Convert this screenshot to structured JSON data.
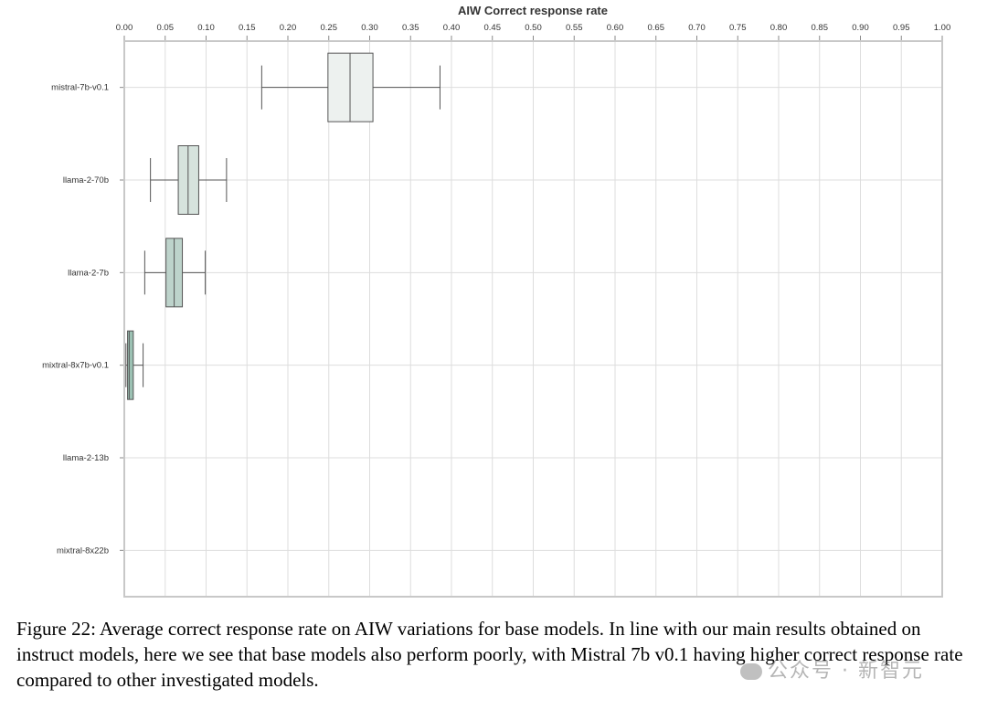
{
  "chart_data": {
    "type": "boxplot",
    "title": "AIW Correct response rate",
    "xlim": [
      0.0,
      1.0
    ],
    "x_ticks": [
      "0.00",
      "0.05",
      "0.10",
      "0.15",
      "0.20",
      "0.25",
      "0.30",
      "0.35",
      "0.40",
      "0.45",
      "0.50",
      "0.55",
      "0.60",
      "0.65",
      "0.70",
      "0.75",
      "0.80",
      "0.85",
      "0.90",
      "0.95",
      "1.00"
    ],
    "x_tick_position": "top",
    "grid": true,
    "categories": [
      "mistral-7b-v0.1",
      "llama-2-70b",
      "llama-2-7b",
      "mixtral-8x7b-v0.1",
      "llama-2-13b",
      "mixtral-8x22b"
    ],
    "boxes": [
      {
        "model": "mistral-7b-v0.1",
        "whisker_low": 0.168,
        "q1": 0.249,
        "median": 0.276,
        "q3": 0.304,
        "whisker_high": 0.386,
        "color": "#edf1ef"
      },
      {
        "model": "llama-2-70b",
        "whisker_low": 0.032,
        "q1": 0.066,
        "median": 0.078,
        "q3": 0.091,
        "whisker_high": 0.125,
        "color": "#d6e3dd"
      },
      {
        "model": "llama-2-7b",
        "whisker_low": 0.025,
        "q1": 0.051,
        "median": 0.061,
        "q3": 0.071,
        "whisker_high": 0.099,
        "color": "#bdd3cb"
      },
      {
        "model": "mixtral-8x7b-v0.1",
        "whisker_low": 0.002,
        "q1": 0.004,
        "median": 0.006,
        "q3": 0.011,
        "whisker_high": 0.023,
        "color": "#9cc1b3"
      },
      {
        "model": "llama-2-13b",
        "whisker_low": 0.0,
        "q1": 0.0,
        "median": 0.0,
        "q3": 0.0,
        "whisker_high": 0.0,
        "color": "#9cc1b3"
      },
      {
        "model": "mixtral-8x22b",
        "whisker_low": 0.0,
        "q1": 0.0,
        "median": 0.0,
        "q3": 0.0,
        "whisker_high": 0.0,
        "color": "#9cc1b3"
      }
    ]
  },
  "caption": "Figure 22: Average correct response rate on AIW variations for base models. In line with our main results obtained on instruct models, here we see that base models also perform poorly, with Mistral 7b v0.1 having higher correct response rate compared to other investigated models.",
  "watermark": "公众号 · 新智元"
}
